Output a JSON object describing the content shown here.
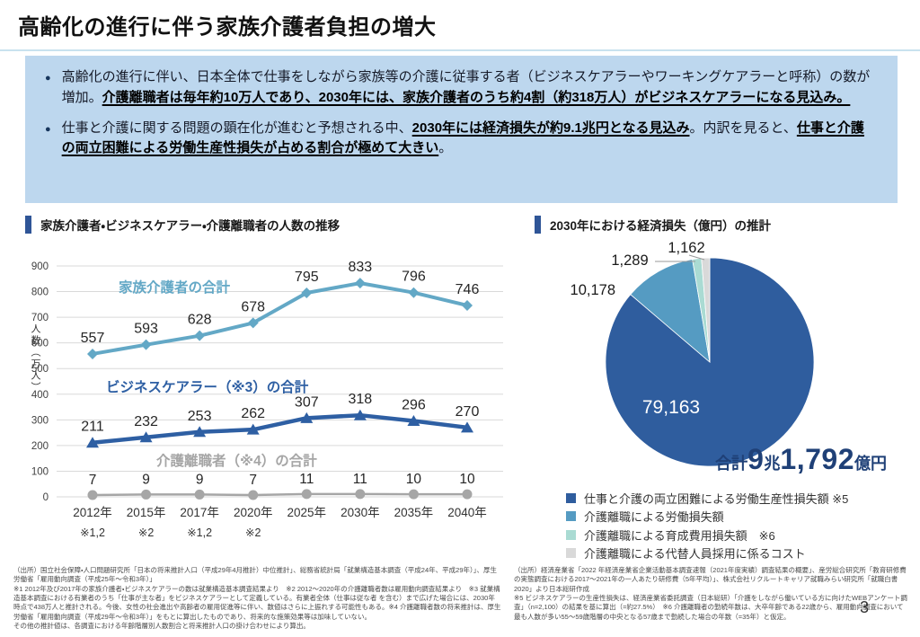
{
  "page": {
    "title": "高齢化の進行に伴う家族介護者負担の増大",
    "page_number": "3"
  },
  "overview": {
    "background": "#BDD7EE",
    "bullets": [
      {
        "segments": [
          {
            "text": "高齢化の進行に伴い、日本全体で仕事をしながら家族等の介護に従事する者（ビジネスケアラーやワーキングケアラーと呼称）の数が増加。",
            "emphasis": false
          },
          {
            "text": "介護離職者は毎年約10万人であり、2030年には、家族介護者のうち約4割（約318万人）がビジネスケアラーになる見込み。",
            "emphasis": true
          }
        ]
      },
      {
        "segments": [
          {
            "text": "仕事と介護に関する問題の顕在化が進むと予想される中、",
            "emphasis": false
          },
          {
            "text": "2030年には経済損失が約9.1兆円となる見込み",
            "emphasis": true
          },
          {
            "text": "。内訳を見ると、",
            "emphasis": false
          },
          {
            "text": "仕事と介護の両立困難による労働生産性損失が占める割合が極めて大きい",
            "emphasis": true
          },
          {
            "text": "。",
            "emphasis": false
          }
        ]
      }
    ]
  },
  "left_panel": {
    "title": "家族介護者・ビジネスケアラー・介護離職者の人数の推移",
    "accent_color": "#2F5597"
  },
  "right_panel": {
    "title": "2030年における経済損失（億円）の推計",
    "accent_color": "#2F5597",
    "total": {
      "segments": [
        {
          "text": "合計",
          "size": "small"
        },
        {
          "text": "9",
          "size": "big"
        },
        {
          "text": "兆",
          "size": "small"
        },
        {
          "text": "1,792",
          "size": "big"
        },
        {
          "text": "億円",
          "size": "small"
        }
      ],
      "color": "#1F4077"
    }
  },
  "chart_data": [
    {
      "type": "line",
      "title": "家族介護者・ビジネスケアラー・介護離職者の人数の推移",
      "xlabel": "",
      "ylabel": "人数（万人）",
      "ylim": [
        0,
        900
      ],
      "ytick_step": 100,
      "grid": true,
      "categories": [
        "2012年",
        "2015年",
        "2017年",
        "2020年",
        "2025年",
        "2030年",
        "2035年",
        "2040年"
      ],
      "category_notes": [
        "※1,2",
        "※2",
        "※1,2",
        "※2",
        "",
        "",
        "",
        ""
      ],
      "series": [
        {
          "name": "家族介護者の合計",
          "values": [
            557,
            593,
            628,
            678,
            795,
            833,
            796,
            746
          ],
          "color": "#63A8C6",
          "marker": "diamond"
        },
        {
          "name": "ビジネスケアラー（※3）の合計",
          "values": [
            211,
            232,
            253,
            262,
            307,
            318,
            296,
            270
          ],
          "color": "#2E5FA3",
          "marker": "triangle"
        },
        {
          "name": "介護離職者（※4）の合計",
          "values": [
            7,
            9,
            9,
            7,
            11,
            11,
            10,
            10
          ],
          "color": "#A6A6A6",
          "marker": "circle"
        }
      ]
    },
    {
      "type": "pie",
      "title": "2030年における経済損失（億円）の推計",
      "total_label": "合計9兆1,792億円",
      "legend_position": "bottom",
      "slices": [
        {
          "label": "仕事と介護の両立困難による労働生産性損失額 ※5",
          "value": 79163,
          "display": "79,163",
          "color": "#2F5D9E"
        },
        {
          "label": "介護離職による労働損失額",
          "value": 10178,
          "display": "10,178",
          "color": "#559BC2"
        },
        {
          "label": "介護離職による育成費用損失額　※6",
          "value": 1289,
          "display": "1,289",
          "color": "#AADBD3"
        },
        {
          "label": "介護離職による代替人員採用に係るコスト",
          "value": 1162,
          "display": "1,162",
          "color": "#D9D9D9"
        }
      ]
    }
  ],
  "footnotes": {
    "left": [
      "（出所）国立社会保障・人口問題研究所「日本の将来推計人口（平成29年4月推計）中位推計」、総務省統計局「就業構造基本調査（平成24年、平成29年）」、厚生労働省「雇用動向調査（平成25年～令和3年）」",
      "※1 2012年及び2017年の家族介護者・ビジネスケアラーの数は就業構造基本調査結果より　※2 2012～2020年の介護離職者数は雇用動向調査結果より　※3 就業構造基本調査における有業者のうち「仕事が主な者」をビジネスケアラーとして定義している。有業者全体（仕事は従な者 を含む）まで広げた場合には、2030年時点で438万人と推計される。今後、女性の社会進出や高齢者の雇用促進等に伴い、数値はさらに上振れする可能性もある。※4 介護離職者数の将来推計は、厚生労働省「雇用動向調査（平成29年～令和3年）」をもとに算出したものであり、将来的な施策効果等は加味していない。",
      "その他の推計値は、各調査における年齢階層別人数割合と将来推計人口の掛け合わせにより算出。"
    ],
    "right": [
      "（出所）経済産業省「2022 年経済産業省企業活動基本調査速報（2021年度実績）調査結果の概要」、産労総合研究所「教育研修費の実態調査における2017～2021年の一人あたり研修費（5年平均）」、株式会社リクルートキャリア就職みらい研究所「就職白書2020」より日本総研作成",
      "※5 ビジネスケアラーの生産性損失は、経済産業省委託調査（日本総研）「介護をしながら働いている方に向けたWEBアンケート調査」（n=2,100）の結果を基に算出（=約27.5%）　※6 介護離職者の勤続年数は、大卒年齢である22歳から、雇用動向調査において最も人数が多い55～59歳階層の中央となる57歳まで勤続した場合の年数（=35年）と仮定。"
    ]
  }
}
